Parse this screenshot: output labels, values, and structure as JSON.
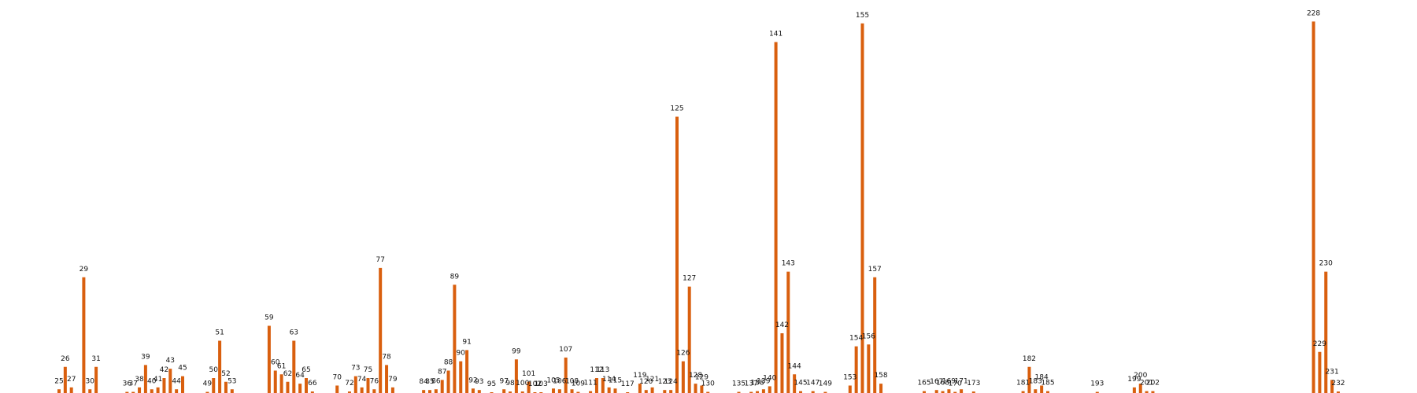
{
  "chart_data": {
    "type": "bar",
    "title": "",
    "xlabel": "",
    "ylabel": "",
    "grid": false,
    "legend": "none",
    "colors": {
      "bar": "#d95f0e",
      "background": "#ffffff",
      "label": "#111111"
    },
    "bar_value_labels": "id",
    "ylim": [
      0,
      100
    ],
    "categories": [
      "25",
      "26",
      "27",
      "29",
      "30",
      "31",
      "36",
      "37",
      "38",
      "39",
      "40",
      "41",
      "42",
      "43",
      "44",
      "45",
      "49",
      "50",
      "51",
      "52",
      "53",
      "59",
      "60",
      "61",
      "62",
      "63",
      "64",
      "65",
      "66",
      "70",
      "72",
      "73",
      "74",
      "75",
      "76",
      "77",
      "78",
      "79",
      "84",
      "85",
      "86",
      "87",
      "88",
      "89",
      "90",
      "91",
      "92",
      "93",
      "95",
      "97",
      "98",
      "99",
      "100",
      "101",
      "102",
      "103",
      "105",
      "106",
      "107",
      "108",
      "109",
      "111",
      "112",
      "113",
      "114",
      "115",
      "117",
      "119",
      "120",
      "121",
      "123",
      "124",
      "125",
      "126",
      "127",
      "128",
      "129",
      "130",
      "135",
      "137",
      "138",
      "139",
      "140",
      "141",
      "142",
      "143",
      "144",
      "145",
      "147",
      "149",
      "153",
      "154",
      "155",
      "156",
      "157",
      "158",
      "165",
      "167",
      "168",
      "169",
      "170",
      "171",
      "173",
      "181",
      "182",
      "183",
      "184",
      "185",
      "193",
      "199",
      "200",
      "201",
      "202",
      "228",
      "229",
      "230",
      "231",
      "232"
    ],
    "values": [
      1.0,
      7.0,
      1.5,
      31.0,
      1.0,
      7.0,
      0.3,
      0.3,
      1.5,
      7.5,
      1.0,
      1.5,
      4.0,
      6.5,
      1.0,
      4.5,
      0.3,
      4.0,
      14.0,
      3.0,
      1.0,
      18.0,
      6.0,
      5.0,
      3.0,
      14.0,
      2.5,
      4.0,
      0.4,
      2.0,
      0.4,
      4.5,
      1.5,
      4.0,
      1.0,
      33.5,
      7.5,
      1.5,
      0.8,
      0.8,
      1.0,
      3.5,
      6.0,
      29.0,
      8.5,
      11.5,
      1.2,
      0.8,
      0.2,
      1.0,
      0.4,
      9.0,
      0.4,
      3.0,
      0.2,
      0.2,
      1.2,
      1.0,
      9.5,
      1.0,
      0.3,
      0.5,
      4.0,
      4.0,
      1.5,
      1.2,
      0.2,
      2.5,
      0.8,
      1.5,
      0.8,
      0.8,
      74.0,
      8.5,
      28.5,
      2.5,
      2.0,
      0.3,
      0.3,
      0.3,
      0.5,
      1.0,
      1.8,
      94.0,
      16.0,
      32.5,
      5.0,
      0.5,
      0.5,
      0.3,
      2.0,
      12.5,
      99.0,
      13.0,
      31.0,
      2.5,
      0.5,
      0.8,
      0.5,
      1.0,
      0.3,
      1.0,
      0.4,
      0.5,
      7.0,
      1.0,
      2.0,
      0.5,
      0.3,
      1.5,
      2.5,
      0.5,
      0.5,
      99.5,
      11.0,
      32.5,
      3.5,
      0.4
    ]
  }
}
